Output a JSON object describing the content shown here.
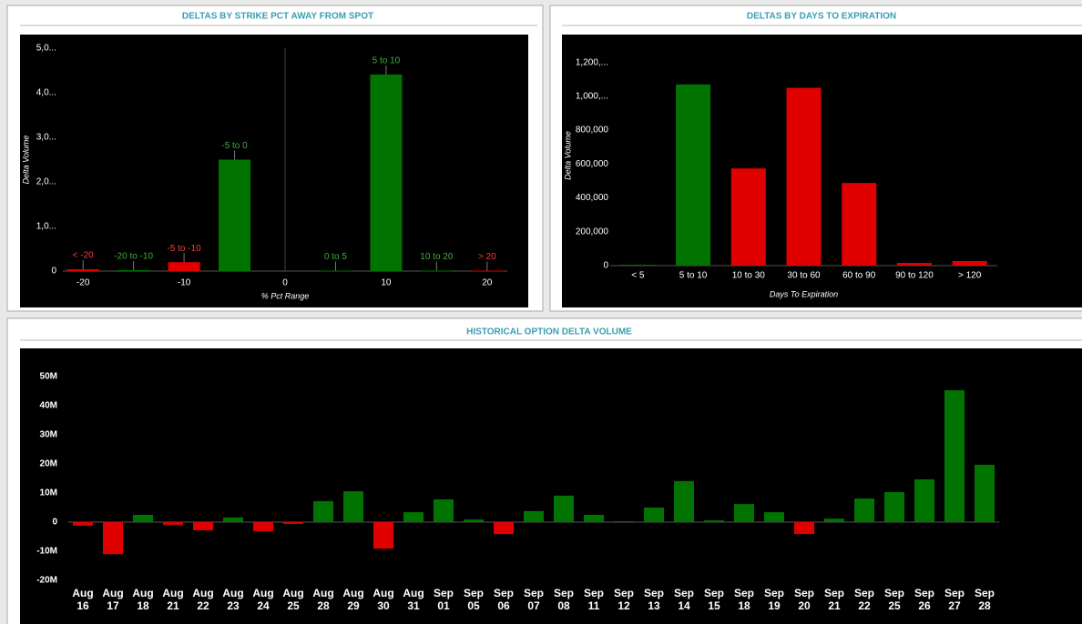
{
  "chart_data": [
    {
      "type": "bar",
      "title": "DELTAS BY STRIKE PCT AWAY FROM SPOT",
      "y_label": "Delta Volume",
      "x_label": "% Pct Range",
      "categories": [
        "< -20",
        "-20 to -10",
        "-5 to -10",
        "-5 to 0",
        "0 to 5",
        "5 to 10",
        "10 to 20",
        "> 20"
      ],
      "x": [
        -20,
        -15,
        -10,
        -5,
        5,
        10,
        15,
        20
      ],
      "values": [
        40000,
        20000,
        200000,
        2500000,
        10000,
        4410000,
        10000,
        10000
      ],
      "colors": [
        "#e00000",
        "#007300",
        "#e00000",
        "#007300",
        "#007300",
        "#007300",
        "#007300",
        "#e00000"
      ],
      "xlim": [
        -22,
        22
      ],
      "xticks": [
        -20,
        -10,
        0,
        10,
        20
      ],
      "ylim": [
        0,
        5000000
      ],
      "yticks": [
        0,
        {
          "value": 1000000,
          "label": "1,0..."
        },
        {
          "value": 2000000,
          "label": "2,0..."
        },
        {
          "value": 3000000,
          "label": "3,0..."
        },
        {
          "value": 4000000,
          "label": "4,0..."
        },
        {
          "value": 5000000,
          "label": "5,0..."
        }
      ]
    },
    {
      "type": "bar",
      "title": "DELTAS BY DAYS TO EXPIRATION",
      "y_label": "Delta Volume",
      "x_label": "Days To Expiration",
      "categories": [
        "< 5",
        "5 to 10",
        "10 to 30",
        "30 to 60",
        "60 to 90",
        "90 to 120",
        "> 120"
      ],
      "values": [
        5000,
        1070000,
        574000,
        1050000,
        488000,
        16000,
        27000
      ],
      "colors": [
        "#007300",
        "#007300",
        "#e00000",
        "#e00000",
        "#e00000",
        "#e00000",
        "#e00000"
      ],
      "ylim": [
        0,
        1300000
      ],
      "yticks": [
        0,
        {
          "value": 200000,
          "label": "200,000"
        },
        {
          "value": 400000,
          "label": "400,000"
        },
        {
          "value": 600000,
          "label": "600,000"
        },
        {
          "value": 800000,
          "label": "800,000"
        },
        {
          "value": 1000000,
          "label": "1,000,..."
        },
        {
          "value": 1200000,
          "label": "1,200,..."
        }
      ]
    },
    {
      "type": "bar",
      "title": "HISTORICAL OPTION DELTA VOLUME",
      "categories": [
        "Aug 16",
        "Aug 17",
        "Aug 18",
        "Aug 21",
        "Aug 22",
        "Aug 23",
        "Aug 24",
        "Aug 25",
        "Aug 28",
        "Aug 29",
        "Aug 30",
        "Aug 31",
        "Sep 01",
        "Sep 05",
        "Sep 06",
        "Sep 07",
        "Sep 08",
        "Sep 11",
        "Sep 12",
        "Sep 13",
        "Sep 14",
        "Sep 15",
        "Sep 18",
        "Sep 19",
        "Sep 20",
        "Sep 21",
        "Sep 22",
        "Sep 25",
        "Sep 26",
        "Sep 27",
        "Sep 28"
      ],
      "values": [
        -1200000,
        -11000000,
        2500000,
        -900000,
        -2800000,
        1600000,
        -3100000,
        -600000,
        7200000,
        10600000,
        -9100000,
        3400000,
        7800000,
        900000,
        -4100000,
        3800000,
        9100000,
        2500000,
        300000,
        5000000,
        14100000,
        600000,
        6200000,
        3400000,
        -4100000,
        1200000,
        8100000,
        10300000,
        14700000,
        45300000,
        19700000
      ],
      "positive_color": "#007300",
      "negative_color": "#e00000",
      "ylim": [
        -25000000,
        55000000
      ],
      "yticks": [
        {
          "value": -20000000,
          "label": "-20M"
        },
        {
          "value": -10000000,
          "label": "-10M"
        },
        0,
        {
          "value": 10000000,
          "label": "10M"
        },
        {
          "value": 20000000,
          "label": "20M"
        },
        {
          "value": 30000000,
          "label": "30M"
        },
        {
          "value": 40000000,
          "label": "40M"
        },
        {
          "value": 50000000,
          "label": "50M"
        }
      ]
    }
  ]
}
